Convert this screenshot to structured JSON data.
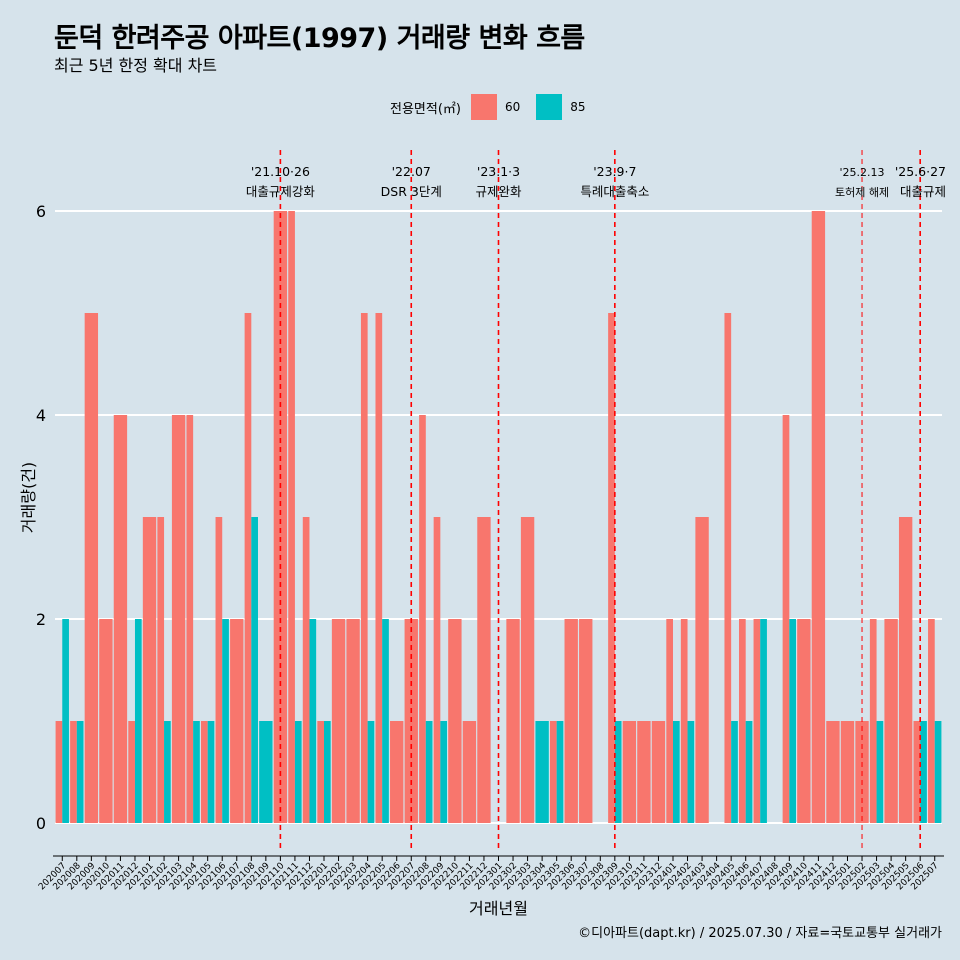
{
  "header": {
    "title": "둔덕 한려주공 아파트(1997) 거래량 변화 흐름",
    "subtitle": "최근 5년 한정 확대 차트"
  },
  "legend": {
    "title": "전용면적(㎡)",
    "items": [
      {
        "label": "60",
        "color": "#f8766d"
      },
      {
        "label": "85",
        "color": "#00bfc4"
      }
    ]
  },
  "caption": "©디아파트(dapt.kr) / 2025.07.30 / 자료=국토교통부 실거래가",
  "chart_data": {
    "type": "bar",
    "xlabel": "거래년월",
    "ylabel": "거래량(건)",
    "ylim": [
      0,
      6
    ],
    "yticks": [
      0,
      2,
      4,
      6
    ],
    "grid": true,
    "legend_position": "top",
    "categories": [
      "202007",
      "202008",
      "202009",
      "202010",
      "202011",
      "202012",
      "202101",
      "202102",
      "202103",
      "202104",
      "202105",
      "202106",
      "202107",
      "202108",
      "202109",
      "202110",
      "202111",
      "202112",
      "202201",
      "202202",
      "202203",
      "202204",
      "202205",
      "202206",
      "202207",
      "202208",
      "202209",
      "202210",
      "202211",
      "202212",
      "202301",
      "202302",
      "202303",
      "202304",
      "202305",
      "202306",
      "202307",
      "202308",
      "202309",
      "202310",
      "202311",
      "202312",
      "202401",
      "202402",
      "202403",
      "202404",
      "202405",
      "202406",
      "202407",
      "202408",
      "202409",
      "202410",
      "202411",
      "202412",
      "202501",
      "202502",
      "202503",
      "202504",
      "202505",
      "202506",
      "202507"
    ],
    "series": [
      {
        "name": "60",
        "color": "#f8766d",
        "values": [
          1,
          1,
          5,
          2,
          4,
          1,
          3,
          3,
          4,
          4,
          1,
          3,
          2,
          5,
          0,
          6,
          6,
          3,
          1,
          2,
          2,
          5,
          5,
          1,
          2,
          4,
          3,
          2,
          1,
          3,
          0,
          2,
          3,
          0,
          1,
          2,
          2,
          0,
          5,
          1,
          1,
          1,
          2,
          2,
          3,
          0,
          5,
          2,
          2,
          0,
          4,
          2,
          6,
          1,
          1,
          1,
          2,
          2,
          3,
          1,
          2
        ]
      },
      {
        "name": "85",
        "color": "#00bfc4",
        "values": [
          2,
          1,
          0,
          0,
          0,
          2,
          0,
          1,
          0,
          1,
          1,
          2,
          0,
          3,
          1,
          0,
          1,
          2,
          1,
          0,
          0,
          1,
          2,
          0,
          0,
          1,
          1,
          0,
          0,
          0,
          0,
          0,
          0,
          1,
          1,
          0,
          0,
          0,
          1,
          0,
          0,
          0,
          1,
          1,
          0,
          0,
          1,
          1,
          2,
          0,
          2,
          0,
          0,
          0,
          0,
          0,
          1,
          0,
          0,
          1,
          1
        ]
      }
    ],
    "annotations": [
      {
        "x": "202110",
        "line1": "'21.10·26",
        "line2": "대출규제강화",
        "style": "solid-dash"
      },
      {
        "x": "202207",
        "line1": "'22.07",
        "line2": "DSR 3단계",
        "style": "solid-dash"
      },
      {
        "x": "202301",
        "line1": "'23.1·3",
        "line2": "규제완화",
        "style": "solid-dash"
      },
      {
        "x": "202309",
        "line1": "'23.9·7",
        "line2": "특례대출축소",
        "style": "solid-dash"
      },
      {
        "x": "202502",
        "line1": "'25.2.13",
        "line2": "토허제 해제",
        "style": "thin-dash"
      },
      {
        "x": "202506",
        "line1": "'25.6·27",
        "line2": "대출규제",
        "style": "solid-dash"
      }
    ]
  }
}
